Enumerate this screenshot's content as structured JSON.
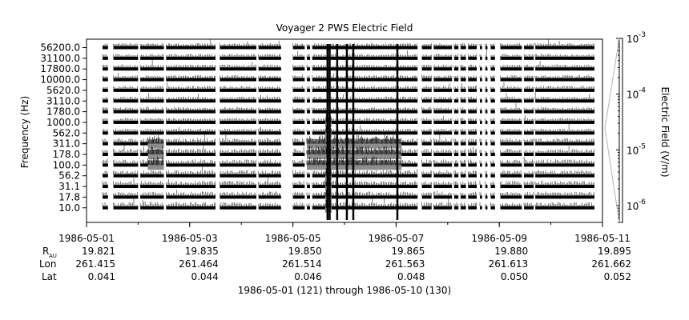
{
  "chart_data": {
    "type": "heatmap",
    "title": "Voyager 2 PWS Electric Field",
    "ylabel": "Frequency (Hz)",
    "colorbar_label": "Electric Field (V/m)",
    "x_axis_caption": "1986-05-01 (121) through 1986-05-10 (130)",
    "channels": [
      "56200.0",
      "31100.0",
      "17800.0",
      "10000.0",
      "5620.0",
      "3110.0",
      "1780.0",
      "1000.0",
      "562.0",
      "311.0",
      "178.0",
      "100.0",
      "56.2",
      "31.1",
      "17.8",
      "10.0"
    ],
    "xlim": [
      "1986-05-01",
      "1986-05-11"
    ],
    "x_ticks": [
      {
        "date": "1986-05-01",
        "r_au": "19.821",
        "lon": "261.415",
        "lat": "0.041"
      },
      {
        "date": "1986-05-03",
        "r_au": "19.835",
        "lon": "261.464",
        "lat": "0.044"
      },
      {
        "date": "1986-05-05",
        "r_au": "19.850",
        "lon": "261.514",
        "lat": "0.046"
      },
      {
        "date": "1986-05-07",
        "r_au": "19.865",
        "lon": "261.563",
        "lat": "0.048"
      },
      {
        "date": "1986-05-09",
        "r_au": "19.880",
        "lon": "261.613",
        "lat": "0.050"
      },
      {
        "date": "1986-05-11",
        "r_au": "19.895",
        "lon": "261.662",
        "lat": "0.052"
      }
    ],
    "aux_row_labels": {
      "r_au": "R",
      "r_au_sub": "AU",
      "lon": "Lon",
      "lat": "Lat"
    },
    "colorbar": {
      "scale": "log",
      "range": [
        5e-07,
        0.001
      ],
      "ticks": [
        {
          "base": "10",
          "exp": "-3",
          "value": 0.001
        },
        {
          "base": "10",
          "exp": "-4",
          "value": 0.0001
        },
        {
          "base": "10",
          "exp": "-5",
          "value": 1e-05
        },
        {
          "base": "10",
          "exp": "-6",
          "value": 1e-06
        }
      ]
    },
    "data_gaps": [
      [
        "1986-05-01T10:00",
        "1986-05-01T12:30"
      ],
      [
        "1986-05-02T00:00",
        "1986-05-02T01:00"
      ],
      [
        "1986-05-02T12:00",
        "1986-05-02T13:00"
      ],
      [
        "1986-05-03T12:00",
        "1986-05-03T14:00"
      ],
      [
        "1986-05-04T07:00",
        "1986-05-04T08:00"
      ],
      [
        "1986-05-04T18:30",
        "1986-05-05T00:00"
      ],
      [
        "1986-05-05T05:30",
        "1986-05-05T06:30"
      ],
      [
        "1986-05-05T08:00",
        "1986-05-05T09:00"
      ],
      [
        "1986-05-07T10:00",
        "1986-05-07T12:00"
      ],
      [
        "1986-05-07T16:30",
        "1986-05-07T17:30"
      ],
      [
        "1986-05-08T02:00",
        "1986-05-08T03:00"
      ],
      [
        "1986-05-08T05:00",
        "1986-05-08T06:00"
      ],
      [
        "1986-05-08T08:30",
        "1986-05-08T09:30"
      ],
      [
        "1986-05-08T13:30",
        "1986-05-08T15:00"
      ],
      [
        "1986-05-08T16:00",
        "1986-05-08T17:30"
      ],
      [
        "1986-05-08T18:30",
        "1986-05-08T20:00"
      ],
      [
        "1986-05-08T22:00",
        "1986-05-09T00:30"
      ],
      [
        "1986-05-09T10:30",
        "1986-05-09T11:30"
      ],
      [
        "1986-05-09T16:00",
        "1986-05-09T16:45"
      ]
    ],
    "enhanced_activity": [
      {
        "from": "1986-05-02T04:30",
        "to": "1986-05-02T12:00",
        "channels": [
          "311.0",
          "178.0",
          "100.0"
        ]
      },
      {
        "from": "1986-05-05T06:30",
        "to": "1986-05-07T02:30",
        "channels": [
          "311.0",
          "178.0",
          "100.0"
        ]
      },
      {
        "from": "1986-05-05T15:00",
        "to": "1986-05-05T18:00",
        "channels": [
          "1000.0",
          "562.0",
          "311.0",
          "178.0",
          "100.0",
          "56.2",
          "31.1",
          "17.8",
          "10.0"
        ]
      }
    ],
    "grid": false
  }
}
